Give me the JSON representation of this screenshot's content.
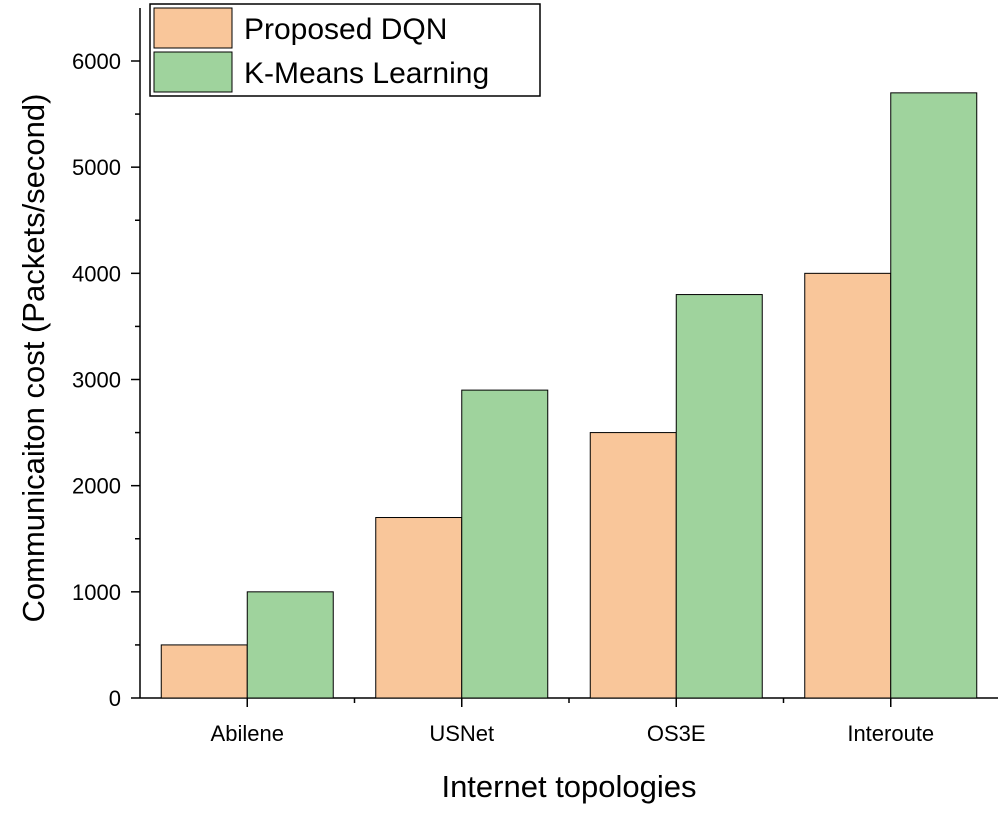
{
  "chart_data": {
    "type": "bar",
    "title": "",
    "xlabel": "Internet topologies",
    "ylabel": "Communicaiton cost (Packets/second)",
    "categories": [
      "Abilene",
      "USNet",
      "OS3E",
      "Interoute"
    ],
    "series": [
      {
        "name": "Proposed DQN",
        "values": [
          500,
          1700,
          2500,
          4000
        ],
        "color": "#f9c69a"
      },
      {
        "name": "K-Means Learning",
        "values": [
          1000,
          2900,
          3800,
          5700
        ],
        "color": "#9fd39d"
      }
    ],
    "ylim": [
      0,
      6400
    ],
    "yticks": [
      0,
      1000,
      2000,
      3000,
      4000,
      5000,
      6000
    ],
    "grid": false,
    "legend_position": "top-left"
  }
}
